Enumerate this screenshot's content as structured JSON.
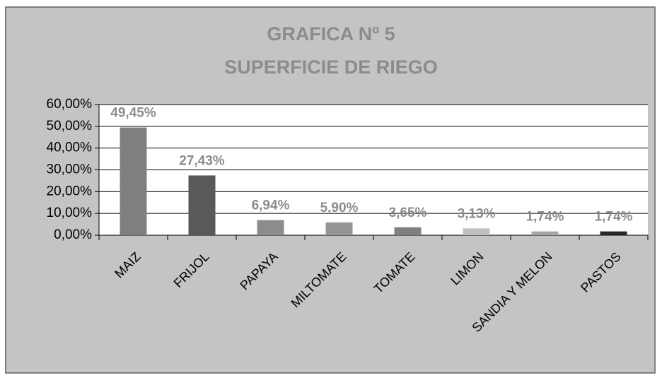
{
  "chart_data": {
    "type": "bar",
    "title": "GRAFICA Nº 5",
    "subtitle": "SUPERFICIE DE RIEGO",
    "categories": [
      "MAIZ",
      "FRIJOL",
      "PAPAYA",
      "MILTOMATE",
      "TOMATE",
      "LIMON",
      "SANDIA Y MELON",
      "PASTOS"
    ],
    "values": [
      49.45,
      27.43,
      6.94,
      5.9,
      3.65,
      3.13,
      1.74,
      1.74
    ],
    "value_labels": [
      "49,45%",
      "27,43%",
      "6,94%",
      "5,90%",
      "3,65%",
      "3,13%",
      "1,74%",
      "1,74%"
    ],
    "colors": [
      "#7f7f7f",
      "#595959",
      "#8c8c8c",
      "#969696",
      "#808080",
      "#bfbfbf",
      "#a6a6a6",
      "#262626"
    ],
    "ylim": [
      0,
      60
    ],
    "yticks": [
      {
        "value": 0,
        "label": "0,00%"
      },
      {
        "value": 10,
        "label": "10,00%"
      },
      {
        "value": 20,
        "label": "20,00%"
      },
      {
        "value": 30,
        "label": "30,00%"
      },
      {
        "value": 40,
        "label": "40,00%"
      },
      {
        "value": 50,
        "label": "50,00%"
      },
      {
        "value": 60,
        "label": "60,00%"
      }
    ],
    "grid": true
  }
}
